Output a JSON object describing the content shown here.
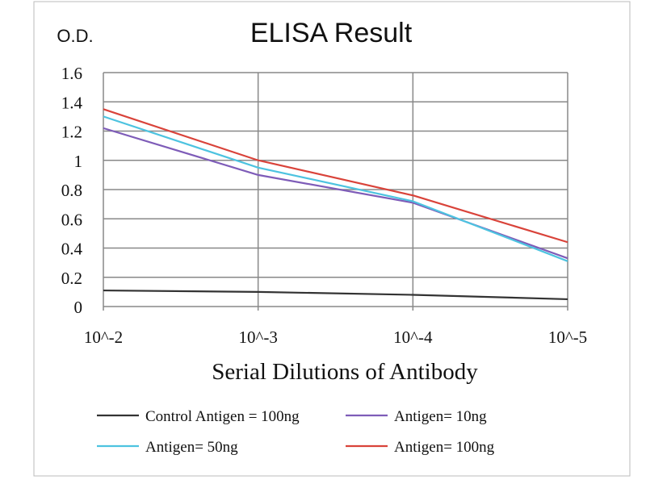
{
  "chart_data": {
    "type": "line",
    "title": "ELISA Result",
    "ylabel": "O.D.",
    "xlabel": "Serial Dilutions  of Antibody",
    "categories": [
      "10^-2",
      "10^-3",
      "10^-4",
      "10^-5"
    ],
    "yticks": [
      "0",
      "0.2",
      "0.4",
      "0.6",
      "0.8",
      "1",
      "1.2",
      "1.4",
      "1.6"
    ],
    "ylim": [
      0,
      1.6
    ],
    "grid": true,
    "legend_position": "bottom",
    "series": [
      {
        "name": "Control Antigen = 100ng",
        "color": "#333333",
        "values": [
          0.11,
          0.1,
          0.08,
          0.05
        ]
      },
      {
        "name": "Antigen= 10ng",
        "color": "#7e5cb8",
        "values": [
          1.22,
          0.9,
          0.71,
          0.33
        ]
      },
      {
        "name": "Antigen= 50ng",
        "color": "#4dc3e0",
        "values": [
          1.3,
          0.95,
          0.72,
          0.31
        ]
      },
      {
        "name": "Antigen= 100ng",
        "color": "#d9433a",
        "values": [
          1.35,
          1.0,
          0.76,
          0.44
        ]
      }
    ]
  }
}
